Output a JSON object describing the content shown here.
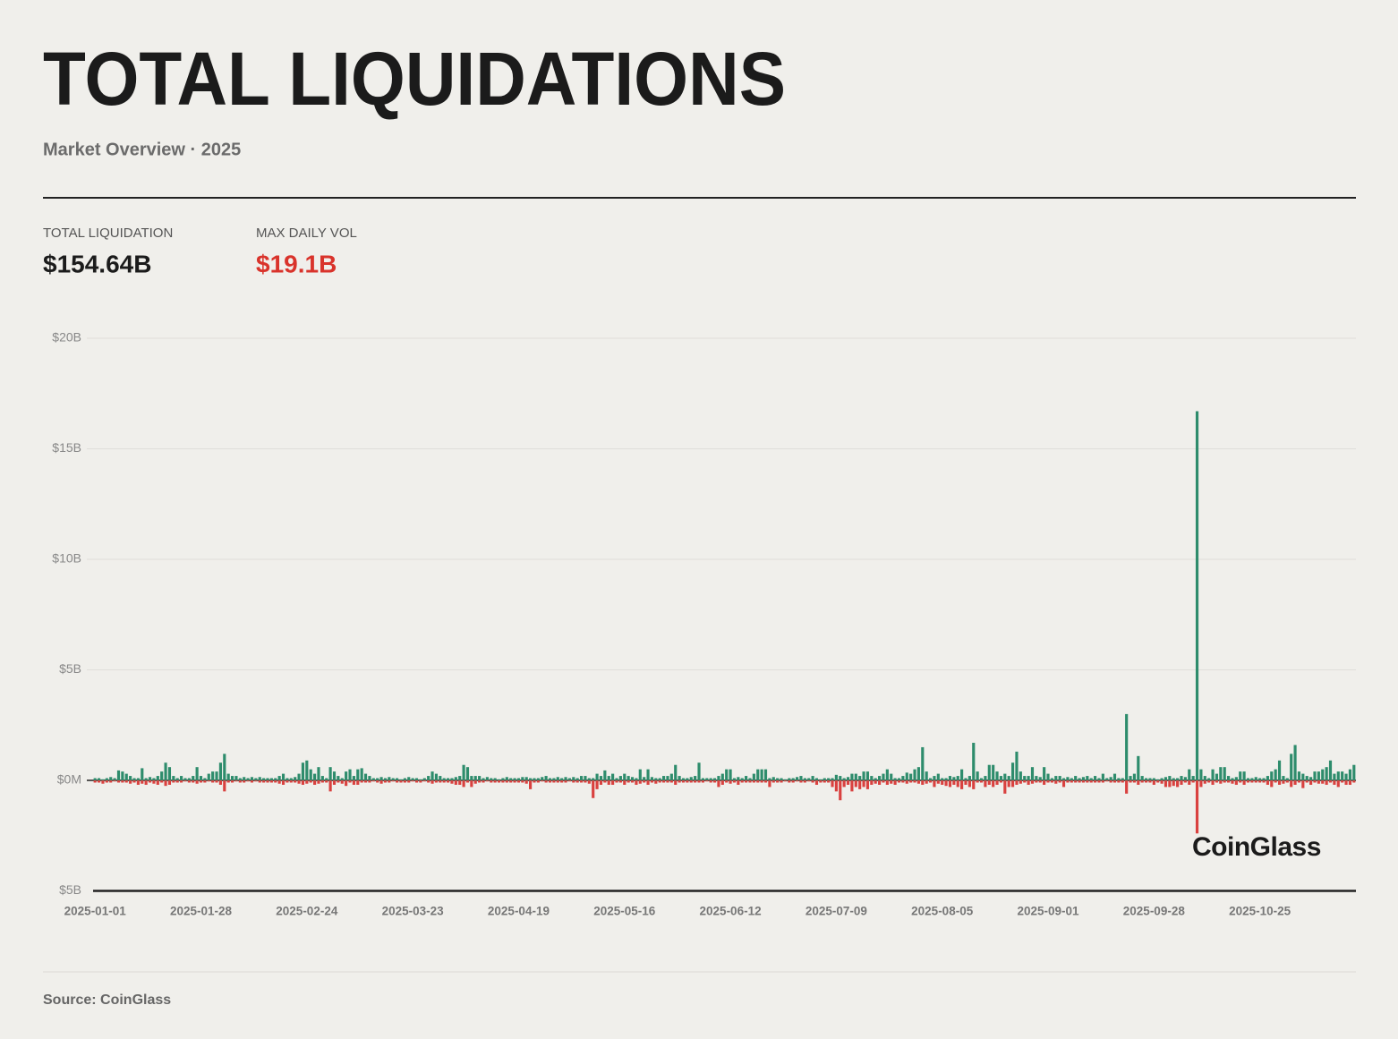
{
  "header": {
    "title": "TOTAL LIQUIDATIONS",
    "subtitle": "Market Overview · 2025"
  },
  "stats": [
    {
      "label": "TOTAL LIQUIDATION",
      "value": "$154.64B"
    },
    {
      "label": "MAX DAILY VOL",
      "value": "$19.1B"
    }
  ],
  "source": "Source: CoinGlass",
  "chart_data": {
    "type": "bar",
    "annotation": "CoinGlass",
    "ylim": [
      -5,
      20
    ],
    "yticks": [
      {
        "value": -5,
        "label": "$5B"
      },
      {
        "value": 0,
        "label": "$0M"
      },
      {
        "value": 5,
        "label": "$5B"
      },
      {
        "value": 10,
        "label": "$10B"
      },
      {
        "value": 15,
        "label": "$15B"
      },
      {
        "value": 20,
        "label": "$20B"
      }
    ],
    "grid": true,
    "categories": [
      "2025-01-01",
      null,
      null,
      null,
      null,
      null,
      null,
      null,
      null,
      null,
      null,
      null,
      null,
      null,
      null,
      null,
      null,
      null,
      null,
      null,
      null,
      null,
      null,
      null,
      null,
      null,
      null,
      "2025-01-28",
      null,
      null,
      null,
      null,
      null,
      null,
      null,
      null,
      null,
      null,
      null,
      null,
      null,
      null,
      null,
      null,
      null,
      null,
      null,
      null,
      null,
      null,
      null,
      null,
      null,
      null,
      "2025-02-24",
      null,
      null,
      null,
      null,
      null,
      null,
      null,
      null,
      null,
      null,
      null,
      null,
      null,
      null,
      null,
      null,
      null,
      null,
      null,
      null,
      null,
      null,
      null,
      null,
      null,
      null,
      "2025-03-23",
      null,
      null,
      null,
      null,
      null,
      null,
      null,
      null,
      null,
      null,
      null,
      null,
      null,
      null,
      null,
      null,
      null,
      null,
      null,
      null,
      null,
      null,
      null,
      null,
      null,
      null,
      "2025-04-19",
      null,
      null,
      null,
      null,
      null,
      null,
      null,
      null,
      null,
      null,
      null,
      null,
      null,
      null,
      null,
      null,
      null,
      null,
      null,
      null,
      null,
      null,
      null,
      null,
      null,
      null,
      "2025-05-16",
      null,
      null,
      null,
      null,
      null,
      null,
      null,
      null,
      null,
      null,
      null,
      null,
      null,
      null,
      null,
      null,
      null,
      null,
      null,
      null,
      null,
      null,
      null,
      null,
      null,
      null,
      "2025-06-12",
      null,
      null,
      null,
      null,
      null,
      null,
      null,
      null,
      null,
      null,
      null,
      null,
      null,
      null,
      null,
      null,
      null,
      null,
      null,
      null,
      null,
      null,
      null,
      null,
      null,
      null,
      "2025-07-09",
      null,
      null,
      null,
      null,
      null,
      null,
      null,
      null,
      null,
      null,
      null,
      null,
      null,
      null,
      null,
      null,
      null,
      null,
      null,
      null,
      null,
      null,
      null,
      null,
      null,
      null,
      "2025-08-05",
      null,
      null,
      null,
      null,
      null,
      null,
      null,
      null,
      null,
      null,
      null,
      null,
      null,
      null,
      null,
      null,
      null,
      null,
      null,
      null,
      null,
      null,
      null,
      null,
      null,
      null,
      "2025-09-01",
      null,
      null,
      null,
      null,
      null,
      null,
      null,
      null,
      null,
      null,
      null,
      null,
      null,
      null,
      null,
      null,
      null,
      null,
      null,
      null,
      null,
      null,
      null,
      null,
      null,
      null,
      "2025-09-28",
      null,
      null,
      null,
      null,
      null,
      null,
      null,
      null,
      null,
      null,
      null,
      null,
      null,
      null,
      null,
      null,
      null,
      null,
      null,
      null,
      null,
      null,
      null,
      null,
      null,
      null,
      "2025-10-25",
      null,
      null,
      null,
      null,
      null,
      null,
      null,
      null,
      null,
      null,
      null,
      null,
      null,
      null,
      null,
      null,
      null,
      null,
      null,
      null,
      null,
      null,
      null,
      null
    ],
    "series": [
      {
        "color": "#2e8c6c",
        "values": [
          0.1,
          0.1,
          0.05,
          0.1,
          0.15,
          0.1,
          0.45,
          0.4,
          0.3,
          0.2,
          0.1,
          0.1,
          0.55,
          0.1,
          0.15,
          0.1,
          0.2,
          0.4,
          0.8,
          0.6,
          0.2,
          0.1,
          0.2,
          0.1,
          0.1,
          0.2,
          0.6,
          0.2,
          0.1,
          0.3,
          0.4,
          0.4,
          0.8,
          1.2,
          0.3,
          0.2,
          0.2,
          0.1,
          0.15,
          0.1,
          0.15,
          0.1,
          0.15,
          0.1,
          0.1,
          0.1,
          0.1,
          0.2,
          0.3,
          0.1,
          0.1,
          0.15,
          0.3,
          0.8,
          0.9,
          0.5,
          0.3,
          0.6,
          0.2,
          0.1,
          0.6,
          0.4,
          0.2,
          0.1,
          0.4,
          0.5,
          0.2,
          0.5,
          0.55,
          0.3,
          0.2,
          0.1,
          0.1,
          0.15,
          0.1,
          0.15,
          0.1,
          0.1,
          0.05,
          0.1,
          0.15,
          0.1,
          0.1,
          0.05,
          0.1,
          0.2,
          0.4,
          0.3,
          0.2,
          0.1,
          0.1,
          0.1,
          0.15,
          0.2,
          0.7,
          0.6,
          0.2,
          0.2,
          0.2,
          0.1,
          0.15,
          0.1,
          0.1,
          0.05,
          0.1,
          0.15,
          0.1,
          0.1,
          0.1,
          0.15,
          0.15,
          0.1,
          0.1,
          0.1,
          0.15,
          0.2,
          0.1,
          0.1,
          0.15,
          0.1,
          0.15,
          0.1,
          0.15,
          0.1,
          0.2,
          0.2,
          0.1,
          0.1,
          0.3,
          0.2,
          0.45,
          0.2,
          0.3,
          0.1,
          0.2,
          0.3,
          0.2,
          0.15,
          0.1,
          0.5,
          0.15,
          0.5,
          0.15,
          0.1,
          0.1,
          0.2,
          0.2,
          0.3,
          0.7,
          0.2,
          0.1,
          0.1,
          0.15,
          0.2,
          0.8,
          0.1,
          0.1,
          0.1,
          0.1,
          0.2,
          0.3,
          0.5,
          0.5,
          0.1,
          0.15,
          0.1,
          0.2,
          0.1,
          0.3,
          0.5,
          0.5,
          0.5,
          0.1,
          0.15,
          0.1,
          0.1,
          0.05,
          0.1,
          0.1,
          0.15,
          0.2,
          0.1,
          0.1,
          0.2,
          0.1,
          0.05,
          0.1,
          0.1,
          0.1,
          0.25,
          0.2,
          0.1,
          0.15,
          0.3,
          0.3,
          0.2,
          0.4,
          0.4,
          0.2,
          0.1,
          0.2,
          0.3,
          0.5,
          0.3,
          0.1,
          0.1,
          0.2,
          0.35,
          0.3,
          0.5,
          0.6,
          1.5,
          0.4,
          0.1,
          0.2,
          0.3,
          0.1,
          0.1,
          0.2,
          0.15,
          0.2,
          0.5,
          0.1,
          0.2,
          1.7,
          0.4,
          0.1,
          0.2,
          0.7,
          0.7,
          0.4,
          0.2,
          0.3,
          0.2,
          0.8,
          1.3,
          0.4,
          0.2,
          0.2,
          0.6,
          0.2,
          0.15,
          0.6,
          0.3,
          0.1,
          0.2,
          0.2,
          0.1,
          0.15,
          0.1,
          0.2,
          0.1,
          0.15,
          0.2,
          0.1,
          0.2,
          0.1,
          0.3,
          0.1,
          0.15,
          0.3,
          0.1,
          0.1,
          3.0,
          0.2,
          0.3,
          1.1,
          0.2,
          0.1,
          0.1,
          0.1,
          0.05,
          0.1,
          0.15,
          0.2,
          0.1,
          0.1,
          0.2,
          0.15,
          0.5,
          0.2,
          16.7,
          0.5,
          0.2,
          0.1,
          0.5,
          0.3,
          0.6,
          0.6,
          0.2,
          0.1,
          0.15,
          0.4,
          0.4,
          0.1,
          0.1,
          0.15,
          0.1,
          0.1,
          0.2,
          0.4,
          0.5,
          0.9,
          0.2,
          0.1,
          1.2,
          1.6,
          0.4,
          0.3,
          0.2,
          0.15,
          0.4,
          0.4,
          0.5,
          0.6,
          0.9,
          0.3,
          0.4,
          0.4,
          0.3,
          0.5,
          0.7
        ]
      },
      {
        "color": "#d9413f",
        "values": [
          -0.1,
          -0.1,
          -0.15,
          -0.1,
          -0.1,
          -0.05,
          -0.1,
          -0.1,
          -0.1,
          -0.15,
          -0.1,
          -0.2,
          -0.15,
          -0.2,
          -0.1,
          -0.15,
          -0.2,
          -0.1,
          -0.25,
          -0.2,
          -0.1,
          -0.1,
          -0.1,
          -0.05,
          -0.1,
          -0.1,
          -0.15,
          -0.1,
          -0.1,
          -0.05,
          -0.1,
          -0.1,
          -0.2,
          -0.5,
          -0.1,
          -0.1,
          -0.05,
          -0.1,
          -0.1,
          -0.05,
          -0.1,
          -0.05,
          -0.1,
          -0.1,
          -0.1,
          -0.1,
          -0.1,
          -0.15,
          -0.2,
          -0.1,
          -0.1,
          -0.1,
          -0.15,
          -0.2,
          -0.15,
          -0.1,
          -0.2,
          -0.15,
          -0.1,
          -0.1,
          -0.5,
          -0.2,
          -0.1,
          -0.15,
          -0.25,
          -0.1,
          -0.2,
          -0.2,
          -0.1,
          -0.1,
          -0.1,
          -0.05,
          -0.1,
          -0.15,
          -0.1,
          -0.1,
          -0.05,
          -0.1,
          -0.1,
          -0.1,
          -0.1,
          -0.05,
          -0.1,
          -0.1,
          -0.05,
          -0.1,
          -0.15,
          -0.1,
          -0.1,
          -0.1,
          -0.1,
          -0.15,
          -0.2,
          -0.2,
          -0.3,
          -0.1,
          -0.3,
          -0.15,
          -0.1,
          -0.1,
          -0.05,
          -0.1,
          -0.1,
          -0.1,
          -0.1,
          -0.1,
          -0.1,
          -0.1,
          -0.1,
          -0.1,
          -0.15,
          -0.4,
          -0.1,
          -0.1,
          -0.05,
          -0.1,
          -0.1,
          -0.1,
          -0.1,
          -0.1,
          -0.1,
          -0.05,
          -0.1,
          -0.1,
          -0.1,
          -0.1,
          -0.15,
          -0.8,
          -0.4,
          -0.2,
          -0.1,
          -0.2,
          -0.2,
          -0.1,
          -0.1,
          -0.2,
          -0.1,
          -0.1,
          -0.2,
          -0.15,
          -0.1,
          -0.2,
          -0.1,
          -0.15,
          -0.1,
          -0.1,
          -0.1,
          -0.1,
          -0.2,
          -0.1,
          -0.1,
          -0.1,
          -0.1,
          -0.1,
          -0.1,
          -0.1,
          -0.05,
          -0.1,
          -0.1,
          -0.3,
          -0.2,
          -0.1,
          -0.15,
          -0.1,
          -0.2,
          -0.1,
          -0.1,
          -0.1,
          -0.1,
          -0.1,
          -0.1,
          -0.1,
          -0.3,
          -0.1,
          -0.1,
          -0.1,
          -0.05,
          -0.1,
          -0.1,
          -0.05,
          -0.1,
          -0.1,
          -0.05,
          -0.1,
          -0.2,
          -0.1,
          -0.1,
          -0.1,
          -0.3,
          -0.5,
          -0.9,
          -0.3,
          -0.2,
          -0.5,
          -0.3,
          -0.4,
          -0.3,
          -0.4,
          -0.2,
          -0.15,
          -0.2,
          -0.1,
          -0.2,
          -0.15,
          -0.2,
          -0.1,
          -0.1,
          -0.15,
          -0.1,
          -0.1,
          -0.15,
          -0.2,
          -0.15,
          -0.1,
          -0.3,
          -0.15,
          -0.2,
          -0.25,
          -0.3,
          -0.2,
          -0.3,
          -0.4,
          -0.2,
          -0.3,
          -0.4,
          -0.1,
          -0.1,
          -0.3,
          -0.2,
          -0.3,
          -0.2,
          -0.1,
          -0.6,
          -0.3,
          -0.3,
          -0.2,
          -0.15,
          -0.1,
          -0.2,
          -0.15,
          -0.1,
          -0.1,
          -0.2,
          -0.1,
          -0.1,
          -0.15,
          -0.1,
          -0.3,
          -0.1,
          -0.1,
          -0.1,
          -0.1,
          -0.1,
          -0.1,
          -0.1,
          -0.1,
          -0.1,
          -0.1,
          -0.05,
          -0.1,
          -0.1,
          -0.1,
          -0.1,
          -0.6,
          -0.1,
          -0.1,
          -0.2,
          -0.1,
          -0.1,
          -0.1,
          -0.2,
          -0.1,
          -0.15,
          -0.3,
          -0.3,
          -0.25,
          -0.3,
          -0.2,
          -0.1,
          -0.2,
          -0.1,
          -2.4,
          -0.3,
          -0.15,
          -0.1,
          -0.2,
          -0.1,
          -0.15,
          -0.1,
          -0.1,
          -0.15,
          -0.2,
          -0.1,
          -0.2,
          -0.1,
          -0.1,
          -0.1,
          -0.1,
          -0.1,
          -0.2,
          -0.3,
          -0.1,
          -0.2,
          -0.15,
          -0.1,
          -0.3,
          -0.2,
          -0.1,
          -0.35,
          -0.1,
          -0.2,
          -0.1,
          -0.15,
          -0.15,
          -0.2,
          -0.1,
          -0.2,
          -0.3,
          -0.1,
          -0.2,
          -0.2,
          -0.1
        ]
      }
    ]
  }
}
